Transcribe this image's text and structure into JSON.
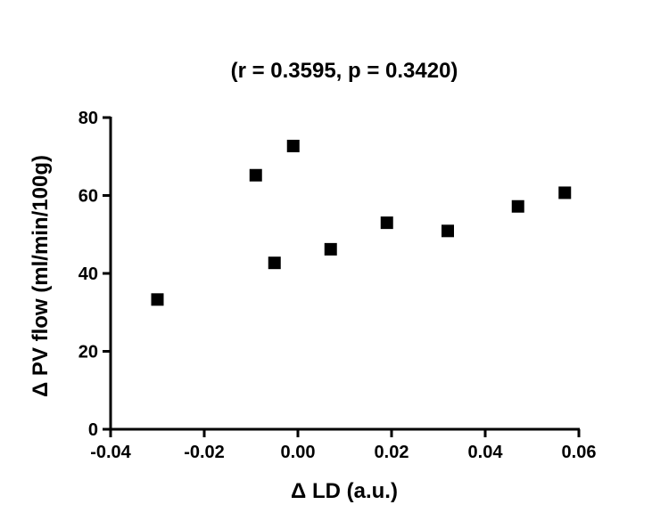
{
  "chart_data": {
    "type": "scatter",
    "title": "(r = 0.3595, p = 0.3420)",
    "xlabel": "Δ LD (a.u.)",
    "ylabel": "Δ PV flow (ml/min/100g)",
    "xlim": [
      -0.04,
      0.06
    ],
    "ylim": [
      0,
      80
    ],
    "x_ticks": [
      -0.04,
      -0.02,
      0.0,
      0.02,
      0.04,
      0.06
    ],
    "x_tick_labels": [
      "-0.04",
      "-0.02",
      "0.00",
      "0.02",
      "0.04",
      "0.06"
    ],
    "y_ticks": [
      0,
      20,
      40,
      60,
      80
    ],
    "y_tick_labels": [
      "0",
      "20",
      "40",
      "60",
      "80"
    ],
    "grid": false,
    "marker": "square",
    "marker_color": "#000000",
    "points": [
      {
        "x": -0.03,
        "y": 33.3
      },
      {
        "x": -0.009,
        "y": 65.2
      },
      {
        "x": -0.005,
        "y": 42.7
      },
      {
        "x": -0.001,
        "y": 72.7
      },
      {
        "x": 0.007,
        "y": 46.2
      },
      {
        "x": 0.019,
        "y": 53.0
      },
      {
        "x": 0.032,
        "y": 50.9
      },
      {
        "x": 0.047,
        "y": 57.2
      },
      {
        "x": 0.057,
        "y": 60.7
      }
    ]
  }
}
